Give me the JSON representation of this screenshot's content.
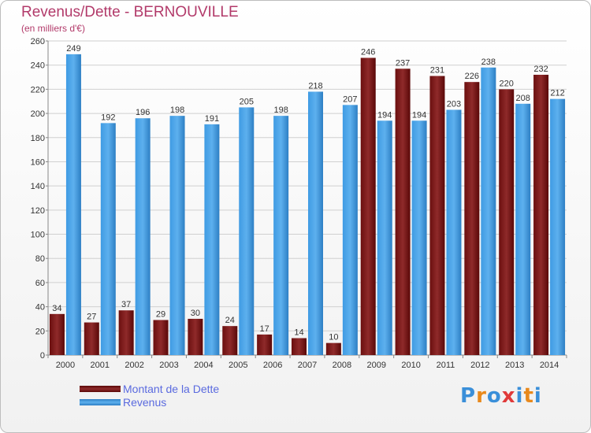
{
  "chart_data": {
    "type": "bar",
    "title": "Revenus/Dette - BERNOUVILLE",
    "subtitle": "(en milliers d'€)",
    "categories": [
      "2000",
      "2001",
      "2002",
      "2003",
      "2004",
      "2005",
      "2006",
      "2007",
      "2008",
      "2009",
      "2010",
      "2011",
      "2012",
      "2013",
      "2014"
    ],
    "series": [
      {
        "name": "Montant de la Dette",
        "color": "#8b1a1a",
        "values": [
          34,
          27,
          37,
          29,
          30,
          24,
          17,
          14,
          10,
          246,
          237,
          231,
          226,
          220,
          232
        ]
      },
      {
        "name": "Revenus",
        "color": "#3a8fd9",
        "values": [
          249,
          192,
          196,
          198,
          191,
          205,
          198,
          218,
          207,
          194,
          194,
          203,
          238,
          208,
          212
        ]
      }
    ],
    "ylim": [
      0,
      260
    ],
    "yticks": [
      0,
      20,
      40,
      60,
      80,
      100,
      120,
      140,
      160,
      180,
      200,
      220,
      240,
      260
    ],
    "grid": true,
    "legend_position": "bottom-left"
  },
  "logo": {
    "text": "Proxiti",
    "letters": [
      "P",
      "r",
      "o",
      "x",
      "i",
      "t",
      "i"
    ],
    "colors": [
      "#3a8fd9",
      "#e8891c",
      "#3a8fd9",
      "#e03a3a",
      "#3a8fd9",
      "#e8891c",
      "#3a8fd9"
    ]
  }
}
